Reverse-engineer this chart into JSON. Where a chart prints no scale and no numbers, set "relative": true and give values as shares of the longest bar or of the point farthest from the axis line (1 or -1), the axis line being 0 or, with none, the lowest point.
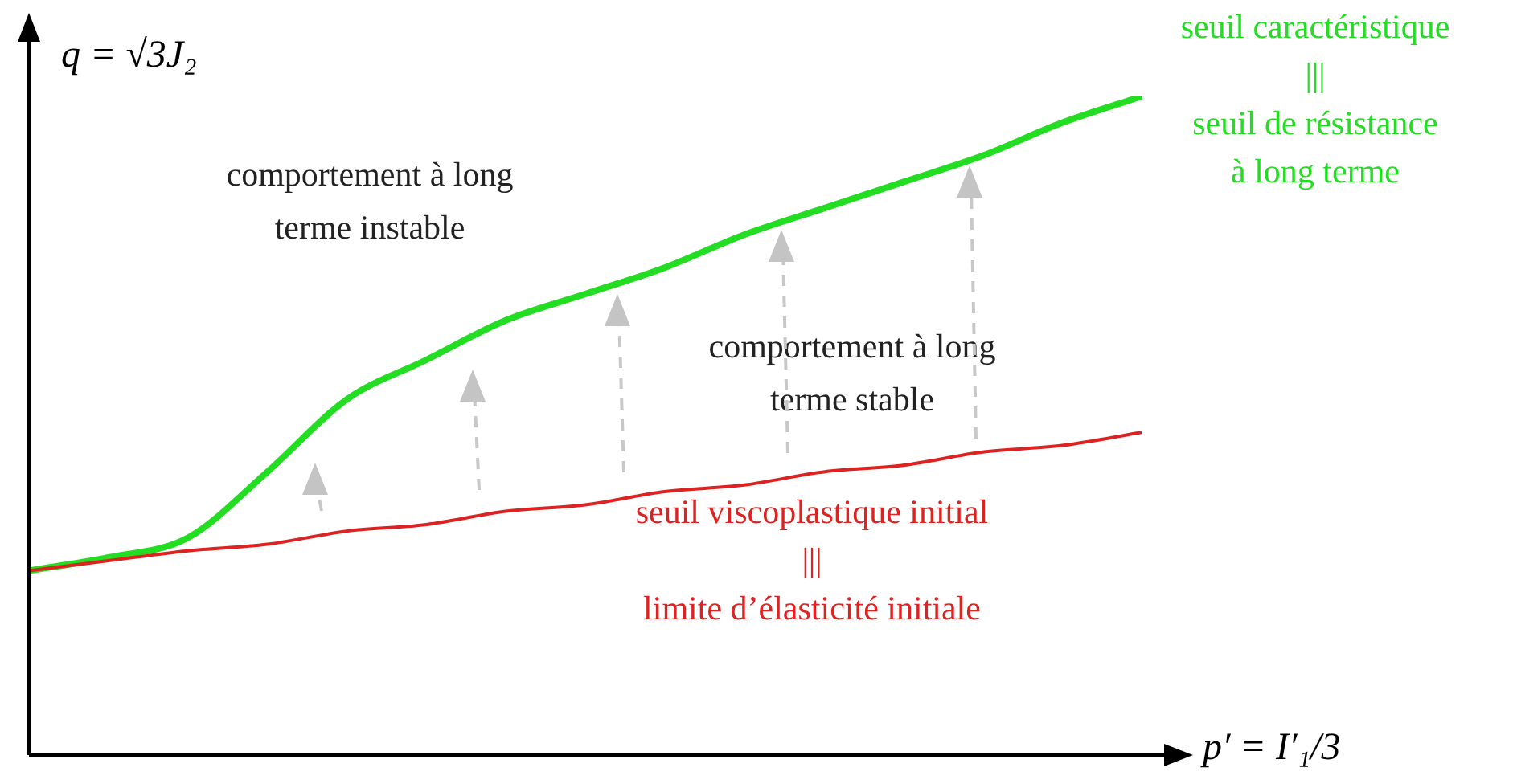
{
  "chart_data": {
    "type": "line",
    "relative": true,
    "marker": "none",
    "xlabel": "p′ = I′₁/3",
    "ylabel": "q = √3J₂",
    "categories": [
      null,
      null,
      null,
      null,
      null,
      null,
      null,
      null,
      null,
      null,
      null,
      null,
      null,
      null,
      null
    ],
    "series": [
      {
        "name": "seuil caractéristique\n|||\nseuil de résistance\nà long terme",
        "color": "#22dd22",
        "values": [
          0.28,
          0.3,
          0.33,
          0.43,
          0.54,
          0.6,
          0.66,
          0.7,
          0.74,
          0.79,
          0.83,
          0.87,
          0.91,
          0.96,
          1
        ]
      },
      {
        "name": "seuil viscoplastique initial\n|||\nlimite d’élasticité initiale",
        "color": "#dd2222",
        "values": [
          0.28,
          0.295,
          0.31,
          0.32,
          0.34,
          0.35,
          0.37,
          0.38,
          0.4,
          0.41,
          0.43,
          0.44,
          0.46,
          0.47,
          0.49
        ]
      }
    ],
    "annotations": [
      "comportement à long\nterme instable",
      "comportement à long\nterme stable"
    ]
  }
}
